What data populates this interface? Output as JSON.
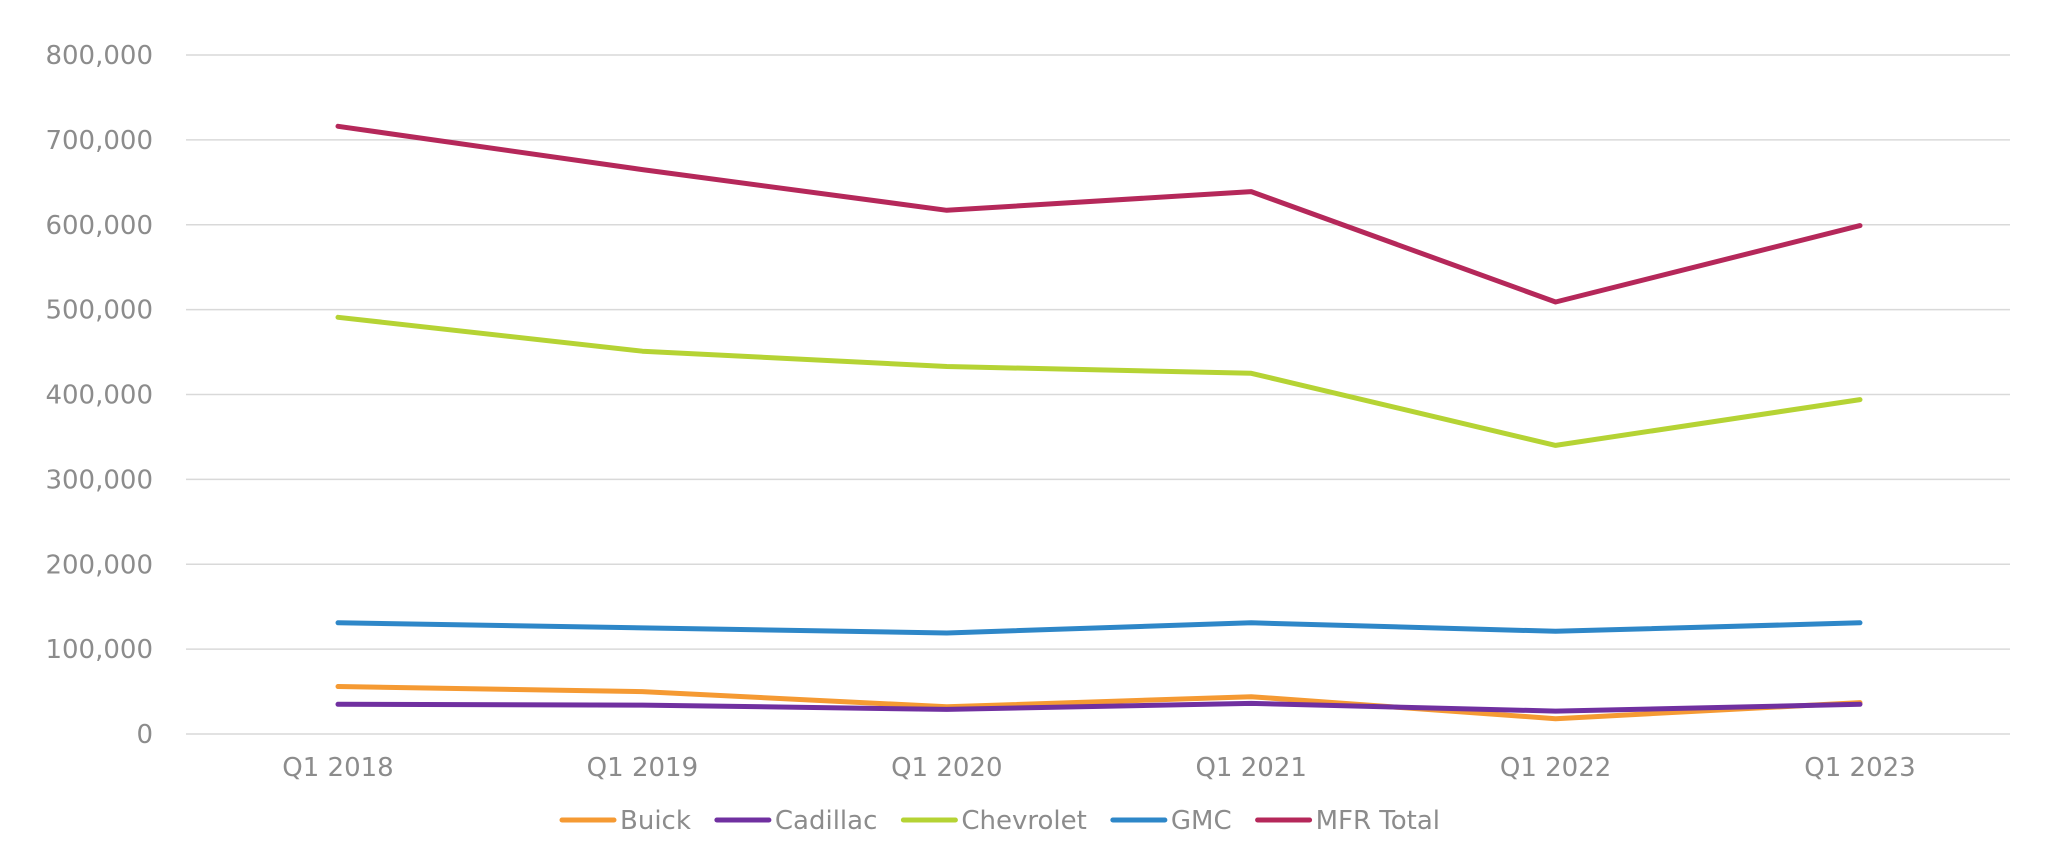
{
  "chart_data": {
    "type": "line",
    "title": "",
    "xlabel": "",
    "ylabel": "",
    "categories": [
      "Q1 2018",
      "Q1 2019",
      "Q1 2020",
      "Q1 2021",
      "Q1 2022",
      "Q1 2023"
    ],
    "ylim": [
      0,
      800000
    ],
    "yticks": [
      0,
      100000,
      200000,
      300000,
      400000,
      500000,
      600000,
      700000,
      800000
    ],
    "ytick_labels": [
      "0",
      "100,000",
      "200,000",
      "300,000",
      "400,000",
      "500,000",
      "600,000",
      "700,000",
      "800,000"
    ],
    "grid": true,
    "legend_position": "bottom",
    "series": [
      {
        "name": "Buick",
        "color": "#f59a33",
        "values": [
          56000,
          50000,
          32000,
          44000,
          18000,
          37000
        ]
      },
      {
        "name": "Cadillac",
        "color": "#7030a0",
        "values": [
          35000,
          34000,
          29000,
          36000,
          27000,
          35000
        ]
      },
      {
        "name": "Chevrolet",
        "color": "#b5d334",
        "values": [
          491000,
          451000,
          433000,
          425000,
          340000,
          394000
        ]
      },
      {
        "name": "GMC",
        "color": "#2e87c8",
        "values": [
          131000,
          125000,
          119000,
          131000,
          121000,
          131000
        ]
      },
      {
        "name": "MFR Total",
        "color": "#b5285a",
        "values": [
          716000,
          665000,
          617000,
          639000,
          509000,
          599000
        ]
      }
    ]
  }
}
